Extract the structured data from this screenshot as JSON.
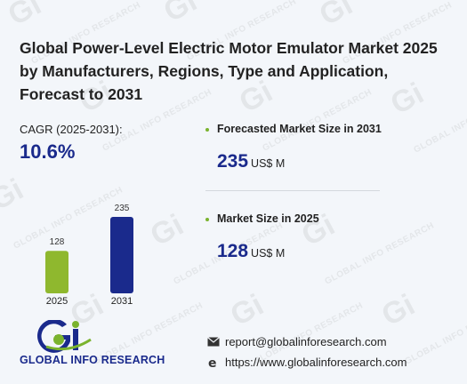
{
  "title": "Global Power-Level Electric Motor Emulator Market 2025 by Manufacturers, Regions, Type and Application, Forecast to 2031",
  "cagr": {
    "label": "CAGR (2025-2031):",
    "value": "10.6%"
  },
  "metrics": [
    {
      "label": "Forecasted Market Size in 2031",
      "value": "235",
      "unit": "US$ M"
    },
    {
      "label": "Market Size in 2025",
      "value": "128",
      "unit": "US$ M"
    }
  ],
  "chart_data": {
    "type": "bar",
    "categories": [
      "2025",
      "2031"
    ],
    "values": [
      128,
      235
    ],
    "colors": [
      "#8fb82e",
      "#1a2a8c"
    ],
    "ylim": [
      0,
      235
    ]
  },
  "brand": {
    "logo_letters": "Gi",
    "name": "GLOBAL INFO RESEARCH"
  },
  "contact": {
    "email": "report@globalinforesearch.com",
    "website": "https://www.globalinforesearch.com",
    "email_icon": "envelope-icon",
    "web_icon": "internet-explorer-icon"
  },
  "watermark": {
    "logo": "Gi",
    "text": "GLOBAL INFO RESEARCH"
  }
}
